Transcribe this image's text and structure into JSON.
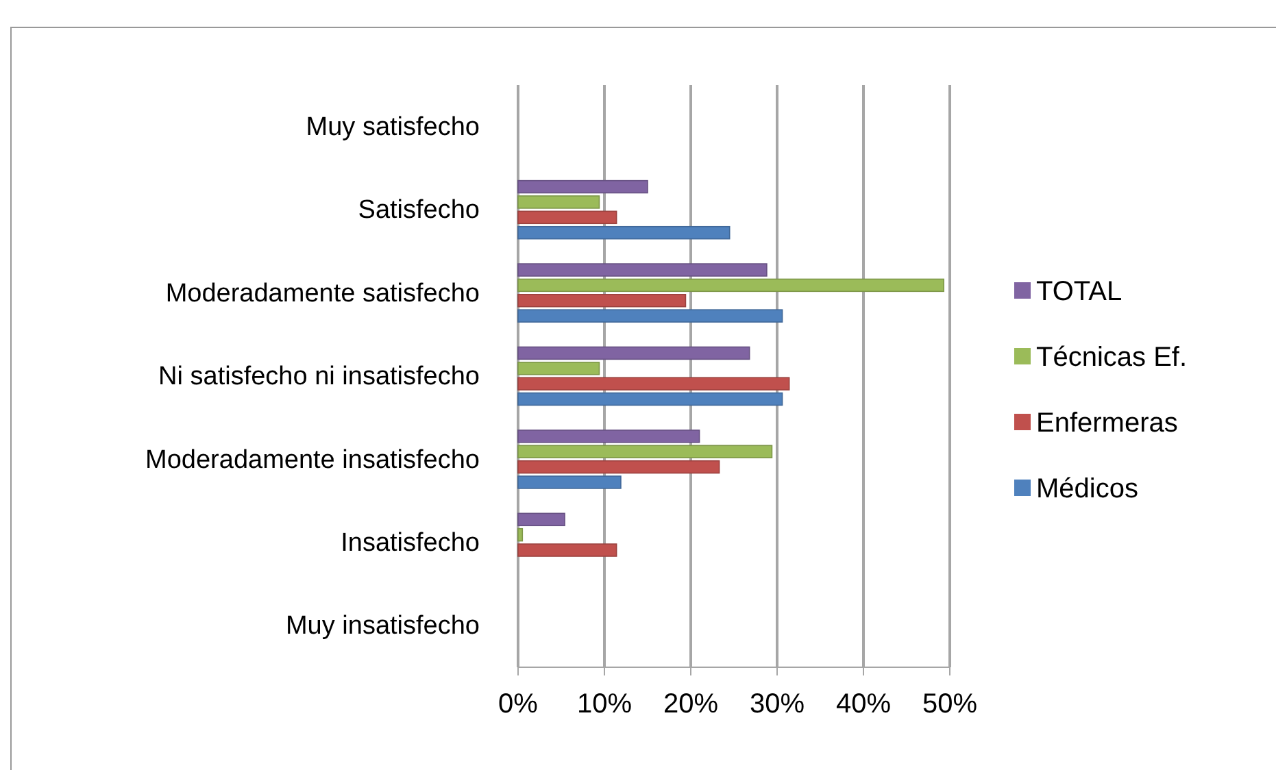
{
  "chart_data": {
    "type": "bar",
    "orientation": "horizontal",
    "categories": [
      "Muy satisfecho",
      "Satisfecho",
      "Moderadamente satisfecho",
      "Ni satisfecho ni insatisfecho",
      "Moderadamente insatisfecho",
      "Insatisfecho",
      "Muy insatisfecho"
    ],
    "series": [
      {
        "name": "Médicos",
        "color": "#4f81bd",
        "values": [
          0,
          24.5,
          30.6,
          30.6,
          11.9,
          0,
          0
        ]
      },
      {
        "name": "Enfermeras",
        "color": "#c0504d",
        "values": [
          0,
          11.4,
          19.4,
          31.4,
          23.3,
          11.4,
          0
        ]
      },
      {
        "name": "Técnicas Ef.",
        "color": "#9bbb59",
        "values": [
          0,
          9.4,
          49.3,
          9.4,
          29.4,
          0.5,
          0
        ]
      },
      {
        "name": "TOTAL",
        "color": "#8064a2",
        "values": [
          0,
          15,
          28.8,
          26.8,
          21,
          5.4,
          0
        ]
      }
    ],
    "xlim": [
      0,
      50
    ],
    "xticks": [
      {
        "value": 0,
        "label": "0%"
      },
      {
        "value": 10,
        "label": "10%"
      },
      {
        "value": 20,
        "label": "20%"
      },
      {
        "value": 30,
        "label": "30%"
      },
      {
        "value": 40,
        "label": "40%"
      },
      {
        "value": 50,
        "label": "50%"
      }
    ],
    "grid": "x",
    "legend": "right"
  }
}
